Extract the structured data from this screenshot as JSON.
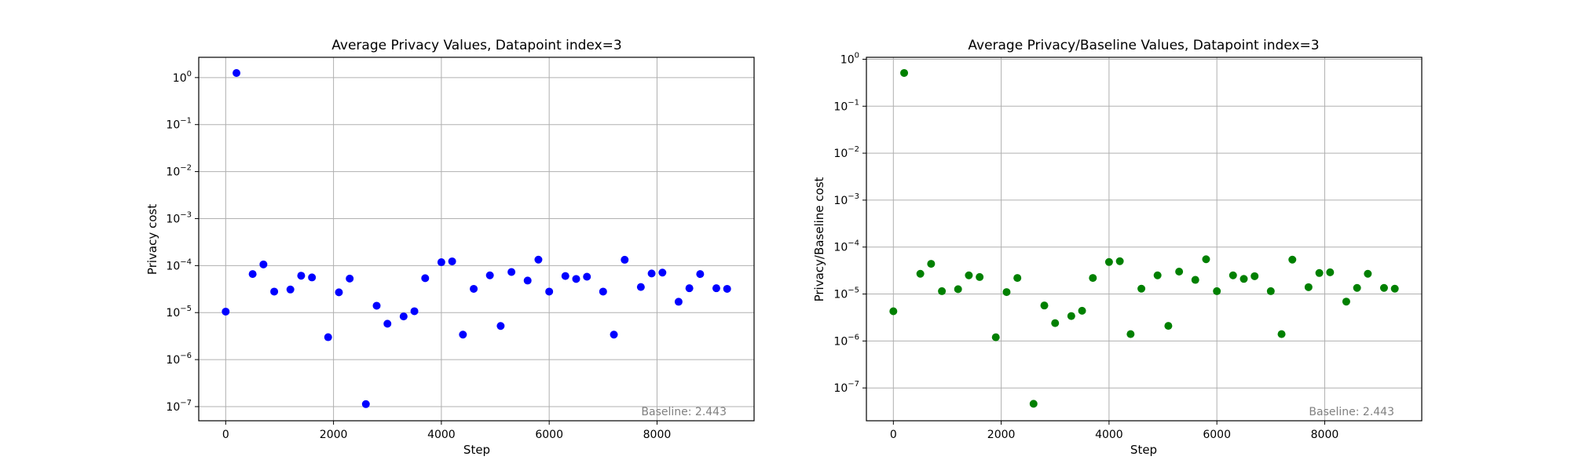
{
  "chart_data": [
    {
      "type": "scatter",
      "title": "Average Privacy Values, Datapoint index=3",
      "xlabel": "Step",
      "ylabel": "Privacy cost",
      "annotation": "Baseline: 2.443",
      "yscale": "log",
      "grid": true,
      "xlim": [
        -500,
        9800
      ],
      "ylim": [
        5e-08,
        2.7
      ],
      "xticks": [
        0,
        2000,
        4000,
        6000,
        8000
      ],
      "yticks": [
        -7,
        -6,
        -5,
        -4,
        -3,
        -2,
        -1,
        0
      ],
      "color": "#0000ff",
      "points": [
        [
          0,
          1.05e-05
        ],
        [
          200,
          1.25
        ],
        [
          500,
          6.6e-05
        ],
        [
          700,
          0.000106
        ],
        [
          900,
          2.8e-05
        ],
        [
          1200,
          3.1e-05
        ],
        [
          1400,
          6.1e-05
        ],
        [
          1600,
          5.6e-05
        ],
        [
          1900,
          3e-06
        ],
        [
          2100,
          2.7e-05
        ],
        [
          2300,
          5.3e-05
        ],
        [
          2600,
          1.13e-07
        ],
        [
          2800,
          1.4e-05
        ],
        [
          3000,
          5.8e-06
        ],
        [
          3300,
          8.3e-06
        ],
        [
          3500,
          1.07e-05
        ],
        [
          3700,
          5.4e-05
        ],
        [
          4000,
          0.000118
        ],
        [
          4200,
          0.000123
        ],
        [
          4400,
          3.4e-06
        ],
        [
          4600,
          3.2e-05
        ],
        [
          4900,
          6.2e-05
        ],
        [
          5100,
          5.2e-06
        ],
        [
          5300,
          7.3e-05
        ],
        [
          5600,
          4.8e-05
        ],
        [
          5800,
          0.000134
        ],
        [
          6000,
          2.8e-05
        ],
        [
          6300,
          6e-05
        ],
        [
          6500,
          5.2e-05
        ],
        [
          6700,
          5.8e-05
        ],
        [
          7000,
          2.8e-05
        ],
        [
          7200,
          3.4e-06
        ],
        [
          7400,
          0.000133
        ],
        [
          7700,
          3.5e-05
        ],
        [
          7900,
          6.8e-05
        ],
        [
          8100,
          7.1e-05
        ],
        [
          8400,
          1.7e-05
        ],
        [
          8600,
          3.3e-05
        ],
        [
          8800,
          6.6e-05
        ],
        [
          9100,
          3.3e-05
        ],
        [
          9300,
          3.2e-05
        ]
      ]
    },
    {
      "type": "scatter",
      "title": "Average Privacy/Baseline Values, Datapoint index=3",
      "xlabel": "Step",
      "ylabel": "Privacy/Baseline cost",
      "annotation": "Baseline: 2.443",
      "yscale": "log",
      "grid": true,
      "xlim": [
        -500,
        9800
      ],
      "ylim": [
        2e-08,
        1.1
      ],
      "xticks": [
        0,
        2000,
        4000,
        6000,
        8000
      ],
      "yticks": [
        -7,
        -6,
        -5,
        -4,
        -3,
        -2,
        -1,
        0
      ],
      "color": "#008000",
      "points": [
        [
          0,
          4.3e-06
        ],
        [
          200,
          0.51
        ],
        [
          500,
          2.7e-05
        ],
        [
          700,
          4.4e-05
        ],
        [
          900,
          1.15e-05
        ],
        [
          1200,
          1.27e-05
        ],
        [
          1400,
          2.5e-05
        ],
        [
          1600,
          2.3e-05
        ],
        [
          1900,
          1.2e-06
        ],
        [
          2100,
          1.1e-05
        ],
        [
          2300,
          2.2e-05
        ],
        [
          2600,
          4.6e-08
        ],
        [
          2800,
          5.7e-06
        ],
        [
          3000,
          2.4e-06
        ],
        [
          3300,
          3.4e-06
        ],
        [
          3500,
          4.4e-06
        ],
        [
          3700,
          2.2e-05
        ],
        [
          4000,
          4.8e-05
        ],
        [
          4200,
          5e-05
        ],
        [
          4400,
          1.4e-06
        ],
        [
          4600,
          1.3e-05
        ],
        [
          4900,
          2.5e-05
        ],
        [
          5100,
          2.1e-06
        ],
        [
          5300,
          3e-05
        ],
        [
          5600,
          2e-05
        ],
        [
          5800,
          5.5e-05
        ],
        [
          6000,
          1.15e-05
        ],
        [
          6300,
          2.5e-05
        ],
        [
          6500,
          2.1e-05
        ],
        [
          6700,
          2.4e-05
        ],
        [
          7000,
          1.15e-05
        ],
        [
          7200,
          1.4e-06
        ],
        [
          7400,
          5.4e-05
        ],
        [
          7700,
          1.4e-05
        ],
        [
          7900,
          2.8e-05
        ],
        [
          8100,
          2.9e-05
        ],
        [
          8400,
          6.9e-06
        ],
        [
          8600,
          1.35e-05
        ],
        [
          8800,
          2.7e-05
        ],
        [
          9100,
          1.35e-05
        ],
        [
          9300,
          1.3e-05
        ]
      ]
    }
  ]
}
